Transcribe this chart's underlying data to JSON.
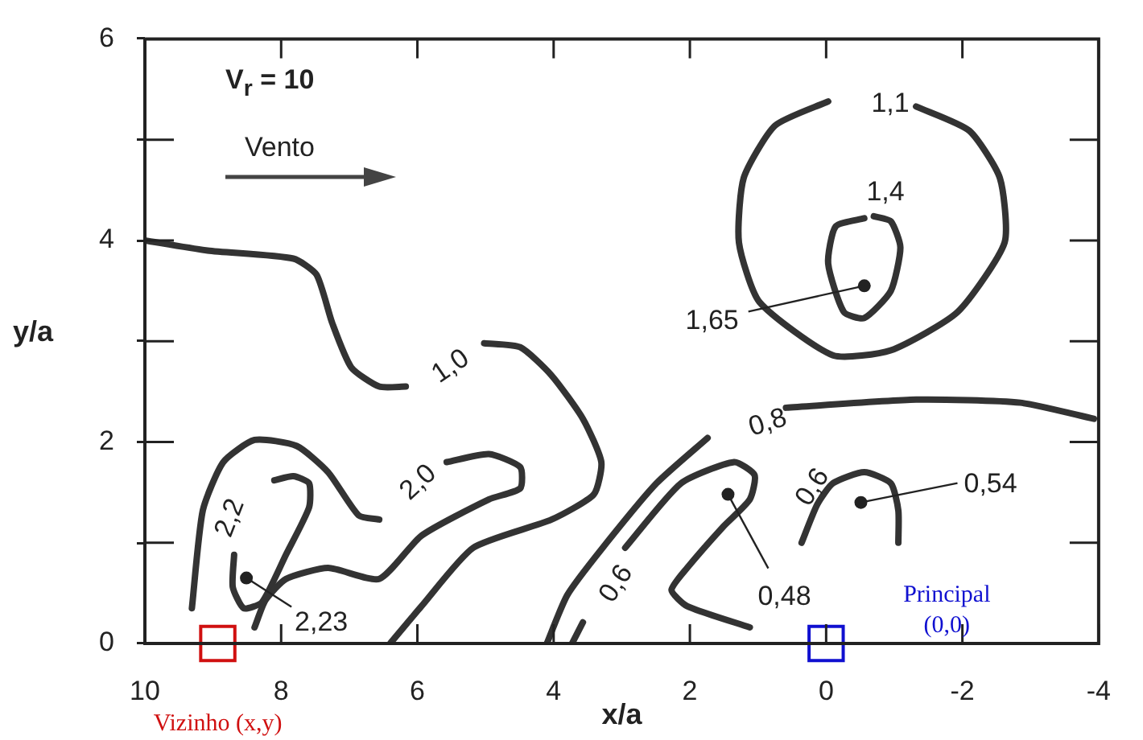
{
  "chart_data": {
    "type": "line",
    "xlabel": "x/a",
    "ylabel": "y/a",
    "xlim": [
      10,
      -4
    ],
    "ylim": [
      0,
      6
    ],
    "xticks": [
      10,
      8,
      6,
      4,
      2,
      0,
      -2,
      -4
    ],
    "yticks": [
      0,
      {
        "value": 1,
        "label": null
      },
      2,
      {
        "value": 3,
        "label": null
      },
      4,
      {
        "value": 5,
        "label": null
      },
      6
    ],
    "grid": false,
    "legend": false,
    "marker": "none",
    "line_style": "solid",
    "series": [
      {
        "color": "#333333",
        "x": [
          10,
          9.08,
          7.82,
          7.48,
          7.25,
          6.97,
          6.56,
          6.17,
          5.6,
          5.02,
          4.49,
          4.03,
          3.57,
          3.3,
          3.41,
          4.03,
          5.18,
          5.94,
          6.4
        ],
        "values": [
          4.0,
          3.9,
          3.82,
          3.66,
          3.18,
          2.74,
          2.55,
          2.55,
          null,
          2.98,
          2.94,
          2.66,
          2.23,
          1.8,
          1.48,
          1.23,
          0.95,
          0.37,
          0
        ]
      },
      {
        "color": "#333333",
        "x": [
          9.31,
          9.15,
          8.85,
          8.39,
          7.77,
          7.31,
          6.86,
          6.56,
          6.1,
          5.57,
          4.95,
          4.49,
          4.49,
          4.95,
          5.94,
          6.56,
          7.31,
          7.93,
          8.23,
          8.39
        ],
        "values": [
          0.35,
          1.32,
          1.8,
          2.02,
          1.96,
          1.7,
          1.27,
          1.23,
          null,
          1.8,
          1.88,
          1.75,
          1.54,
          1.43,
          1.07,
          0.64,
          0.75,
          0.64,
          0.43,
          0.16
        ]
      },
      {
        "color": "#333333",
        "x": [
          8.69,
          8.71,
          8.55,
          8.28,
          7.93,
          7.59,
          7.59,
          7.82,
          8.1
        ],
        "values": [
          0.88,
          0.56,
          0.35,
          0.41,
          0.88,
          1.35,
          1.59,
          1.66,
          1.62
        ]
      },
      {
        "color": "#333333",
        "x": [
          4.1,
          3.8,
          3.28,
          2.49,
          1.74,
          1.2,
          0.59,
          -1.32,
          -2.85,
          -3.93
        ],
        "values": [
          0,
          0.48,
          0.95,
          1.59,
          2.04,
          null,
          2.34,
          2.42,
          2.39,
          2.23
        ]
      },
      {
        "color": "#333333",
        "x": [
          3.73,
          3.57,
          3.3,
          2.95,
          2.13,
          1.35,
          1.05,
          1.12,
          1.51,
          2.04,
          2.27,
          2.04,
          1.12
        ],
        "values": [
          0,
          0.21,
          null,
          0.95,
          1.59,
          1.8,
          1.67,
          1.43,
          1.16,
          0.75,
          0.53,
          0.37,
          0.16
        ]
      },
      {
        "color": "#333333",
        "x": [
          0.36,
          0.13,
          -0.1,
          -0.56,
          -0.95,
          -1.06,
          -1.06
        ],
        "values": [
          1.0,
          1.38,
          1.59,
          1.7,
          1.59,
          1.32,
          1.0
        ]
      },
      {
        "color": "#333333",
        "x": [
          -0.03,
          0.75,
          1.21,
          1.28,
          0.98,
          -0.1,
          -0.95,
          -1.93,
          -2.62,
          -2.55,
          -2.1,
          -1.32
        ],
        "values": [
          5.38,
          5.14,
          4.62,
          3.98,
          3.39,
          2.86,
          2.91,
          3.29,
          3.98,
          4.62,
          5.09,
          5.33
        ]
      },
      {
        "color": "#333333",
        "x": [
          -0.56,
          -0.14,
          -0.03,
          -0.26,
          -0.56,
          -0.95,
          -1.09,
          -0.95,
          -0.7
        ],
        "values": [
          4.22,
          4.14,
          3.77,
          3.29,
          3.23,
          3.5,
          3.93,
          4.19,
          4.24
        ]
      },
      {
        "type": "scatter",
        "marker": "square",
        "name": "Vizinho (x,y)",
        "color": "#d01010",
        "x": [
          8.93
        ],
        "values": [
          0
        ]
      },
      {
        "type": "scatter",
        "marker": "square",
        "name": "Principal (0,0)",
        "color": "#1010d0",
        "x": [
          0
        ],
        "values": [
          0
        ]
      }
    ],
    "annotations": [
      "V$_{r}$ = 10",
      "Vento",
      "1,1",
      "1,4",
      {
        "text": "1,65",
        "x": -0.56,
        "y": 3.55
      },
      "1,0",
      "2,0",
      "2,2",
      {
        "text": "2,23",
        "x": 8.51,
        "y": 0.65
      },
      "0,8",
      "0,6",
      "0,6",
      {
        "text": "0,48",
        "x": 1.44,
        "y": 1.48
      },
      {
        "text": "0,54",
        "x": -0.51,
        "y": 1.4
      }
    ]
  }
}
